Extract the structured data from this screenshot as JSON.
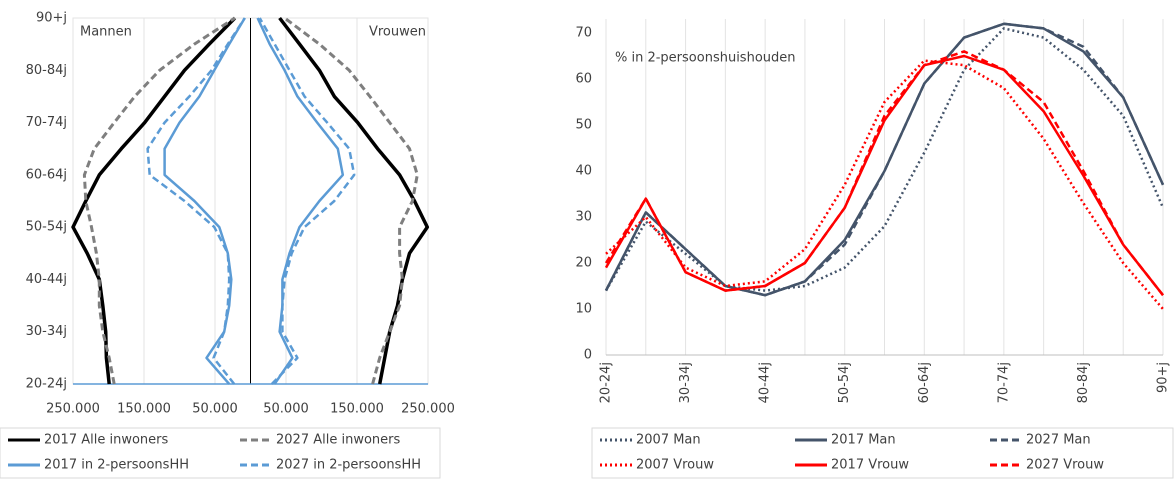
{
  "chart_data": [
    {
      "type": "pyramid",
      "side_labels": [
        "Mannen",
        "Vrouwen"
      ],
      "categories": [
        "20-24j",
        null,
        "30-34j",
        null,
        "40-44j",
        null,
        "50-54j",
        null,
        "60-64j",
        null,
        "70-74j",
        null,
        "80-84j",
        null,
        "90+j"
      ],
      "xlim": [
        -250000,
        250000
      ],
      "xticks": [
        {
          "value": -250000,
          "label": "250.000"
        },
        {
          "value": -150000,
          "label": "150.000"
        },
        {
          "value": -50000,
          "label": "50.000"
        },
        {
          "value": 50000,
          "label": "50.000"
        },
        {
          "value": 150000,
          "label": "150.000"
        },
        {
          "value": 250000,
          "label": "250.000"
        }
      ],
      "grid": "x",
      "legend": "bottom",
      "series": [
        {
          "name": "2017 Alle inwoners",
          "color": "#000000",
          "dash": "solid",
          "men": [
            199000,
            203000,
            204000,
            208000,
            213000,
            230000,
            250000,
            232000,
            213000,
            182000,
            149000,
            121000,
            93000,
            58000,
            22000
          ],
          "women": [
            182000,
            189000,
            196000,
            207000,
            214000,
            224000,
            249000,
            231000,
            210000,
            179000,
            151000,
            118000,
            97000,
            69000,
            41000
          ]
        },
        {
          "name": "2027 Alle inwoners",
          "color": "#7f7f7f",
          "dash": "dash",
          "men": [
            192000,
            199000,
            208000,
            213000,
            213000,
            217000,
            224000,
            232000,
            234000,
            220000,
            192000,
            163000,
            128000,
            79000,
            22000
          ],
          "women": [
            172000,
            182000,
            196000,
            210000,
            214000,
            210000,
            210000,
            228000,
            235000,
            224000,
            196000,
            168000,
            139000,
            97000,
            48000
          ]
        },
        {
          "name": "2017 in 2-persoonsHH",
          "color": "#5b9bd5",
          "dash": "solid",
          "men": [
            30000,
            62000,
            37000,
            30000,
            27000,
            32000,
            44000,
            79000,
            121000,
            121000,
            100000,
            72000,
            51000,
            30000,
            8000
          ],
          "women": [
            34000,
            59000,
            41000,
            45000,
            45000,
            55000,
            69000,
            97000,
            130000,
            123000,
            94000,
            66000,
            48000,
            27000,
            10000
          ]
        },
        {
          "name": "2027  in 2-persoonsHH",
          "color": "#5b9bd5",
          "dash": "dash",
          "men": [
            23000,
            52000,
            37000,
            32000,
            30000,
            32000,
            51000,
            93000,
            142000,
            145000,
            121000,
            86000,
            55000,
            32000,
            8000
          ],
          "women": [
            30000,
            66000,
            45000,
            45000,
            48000,
            58000,
            76000,
            118000,
            146000,
            139000,
            108000,
            76000,
            55000,
            34000,
            13000
          ]
        }
      ]
    },
    {
      "type": "line",
      "annotation": "% in 2-persoonshuishouden",
      "categories": [
        "20-24j",
        null,
        "30-34j",
        null,
        "40-44j",
        null,
        "50-54j",
        null,
        "60-64j",
        null,
        "70-74j",
        null,
        "80-84j",
        null,
        "90+j"
      ],
      "ylim": [
        0,
        70
      ],
      "yticks": [
        0,
        10,
        20,
        30,
        40,
        50,
        60,
        70
      ],
      "grid": "x",
      "legend": "bottom",
      "series": [
        {
          "name": "2007 Man",
          "color": "#44546a",
          "dash": "dot",
          "values": [
            14,
            29,
            22,
            15,
            14,
            15,
            19,
            28,
            44,
            62,
            71,
            69,
            62,
            52,
            32
          ]
        },
        {
          "name": "2017 Man",
          "color": "#44546a",
          "dash": "solid",
          "values": [
            14,
            31,
            23,
            15,
            13,
            16,
            25,
            40,
            59,
            69,
            72,
            71,
            66,
            56,
            37
          ]
        },
        {
          "name": "2027 Man",
          "color": "#44546a",
          "dash": "dash",
          "values": [
            14,
            31,
            23,
            15,
            13,
            16,
            24,
            40,
            59,
            69,
            72,
            71,
            67,
            56,
            37
          ]
        },
        {
          "name": "2007 Vrouw",
          "color": "#ff0000",
          "dash": "dot",
          "values": [
            22,
            30,
            19,
            15,
            16,
            23,
            37,
            55,
            64,
            63,
            58,
            47,
            33,
            20,
            10
          ]
        },
        {
          "name": "2017 Vrouw",
          "color": "#ff0000",
          "dash": "solid",
          "values": [
            19,
            34,
            18,
            14,
            15,
            20,
            32,
            51,
            63,
            65,
            62,
            53,
            39,
            24,
            13
          ]
        },
        {
          "name": "2027 Vrouw",
          "color": "#ff0000",
          "dash": "dash",
          "values": [
            20,
            34,
            18,
            14,
            15,
            20,
            32,
            52,
            63,
            66,
            62,
            55,
            40,
            24,
            13
          ]
        }
      ]
    }
  ]
}
